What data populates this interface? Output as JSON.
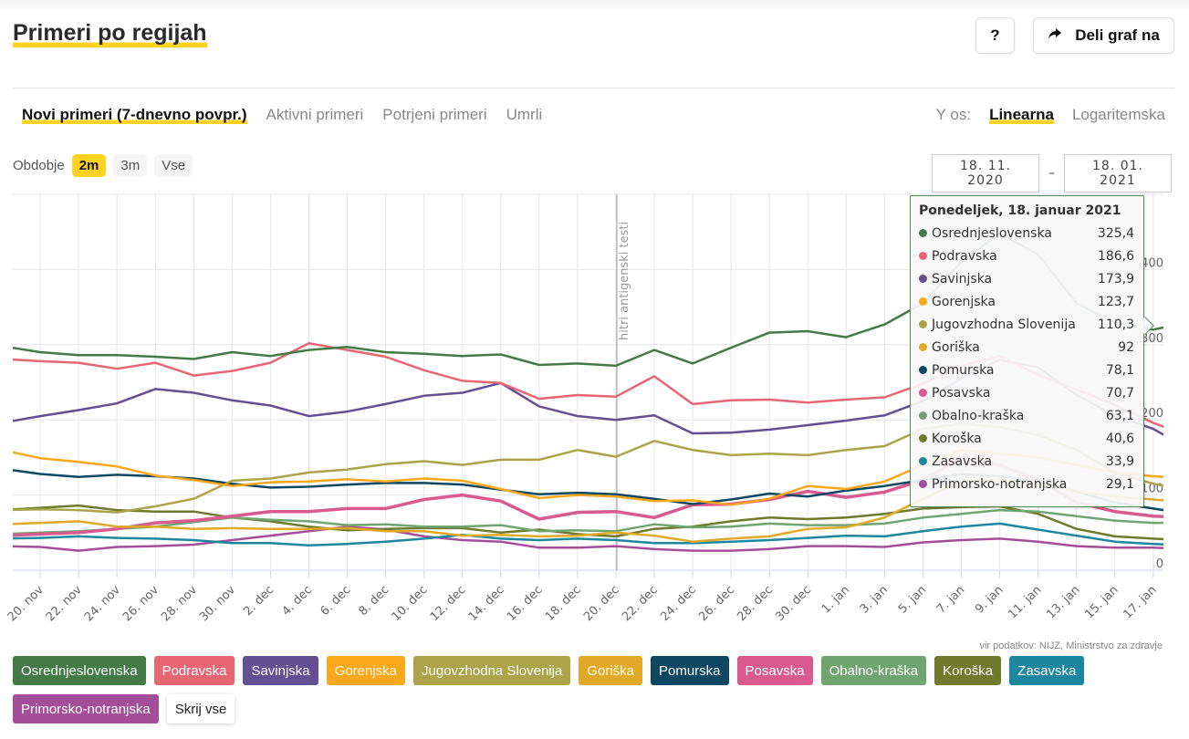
{
  "header": {
    "title": "Primeri po regijah",
    "help_label": "?",
    "share_label": "Deli graf na"
  },
  "tabs": [
    {
      "label": "Novi primeri (7-dnevno povpr.)",
      "active": true
    },
    {
      "label": "Aktivni primeri",
      "active": false
    },
    {
      "label": "Potrjeni primeri",
      "active": false
    },
    {
      "label": "Umrli",
      "active": false
    }
  ],
  "yaxis": {
    "label": "Y os:",
    "options": [
      {
        "label": "Linearna",
        "active": true
      },
      {
        "label": "Logaritemska",
        "active": false
      }
    ]
  },
  "period": {
    "label": "Obdobje",
    "options": [
      {
        "label": "2m",
        "active": true
      },
      {
        "label": "3m",
        "active": false
      },
      {
        "label": "Vse",
        "active": false
      }
    ]
  },
  "daterange": {
    "from": "18. 11. 2020",
    "separator": "–",
    "to": "18. 01. 2021"
  },
  "source": "vir podatkov: NIJZ, Ministrstvo za zdravje",
  "hide_all_label": "Skrij vse",
  "tooltip": {
    "title": "Ponedeljek, 18. januar 2021",
    "rows": [
      {
        "name": "Osrednjeslovenska",
        "value": "325,4",
        "color": "#437a46"
      },
      {
        "name": "Podravska",
        "value": "186,6",
        "color": "#e86673"
      },
      {
        "name": "Savinjska",
        "value": "173,9",
        "color": "#654f93"
      },
      {
        "name": "Gorenjska",
        "value": "123,7",
        "color": "#f9a71b"
      },
      {
        "name": "Jugovzhodna Slovenija",
        "value": "110,3",
        "color": "#ada349"
      },
      {
        "name": "Goriška",
        "value": "92",
        "color": "#e0a927"
      },
      {
        "name": "Pomurska",
        "value": "78,1",
        "color": "#0d4761"
      },
      {
        "name": "Posavska",
        "value": "70,7",
        "color": "#d85a8e"
      },
      {
        "name": "Obalno-kraška",
        "value": "63,1",
        "color": "#70a572"
      },
      {
        "name": "Koroška",
        "value": "40,6",
        "color": "#6f7a2d"
      },
      {
        "name": "Zasavska",
        "value": "33,9",
        "color": "#1d87a0"
      },
      {
        "name": "Primorsko-notranjska",
        "value": "29,1",
        "color": "#a44e9a"
      }
    ]
  },
  "chart_data": {
    "type": "line",
    "title": "Primeri po regijah — Novi primeri (7-dnevno povpr.)",
    "xlabel": "",
    "ylabel": "",
    "ylim": [
      0,
      500
    ],
    "yticks": [
      0,
      100,
      200,
      300,
      400
    ],
    "yaxis_side": "right",
    "grid": true,
    "annotation": {
      "label": "hitri antigenski testi",
      "x": "20. dec"
    },
    "x_dates": [
      "18. nov",
      "20. nov",
      "22. nov",
      "24. nov",
      "26. nov",
      "28. nov",
      "30. nov",
      "2. dec",
      "4. dec",
      "6. dec",
      "8. dec",
      "10. dec",
      "12. dec",
      "14. dec",
      "16. dec",
      "18. dec",
      "20. dec",
      "22. dec",
      "24. dec",
      "26. dec",
      "28. dec",
      "30. dec",
      "1. jan",
      "3. jan",
      "5. jan",
      "7. jan",
      "9. jan",
      "11. jan",
      "13. jan",
      "15. jan",
      "17. jan",
      "18. jan"
    ],
    "x_ticks": [
      "20. nov",
      "22. nov",
      "24. nov",
      "26. nov",
      "28. nov",
      "30. nov",
      "2. dec",
      "4. dec",
      "6. dec",
      "8. dec",
      "10. dec",
      "12. dec",
      "14. dec",
      "16. dec",
      "18. dec",
      "20. dec",
      "22. dec",
      "24. dec",
      "26. dec",
      "28. dec",
      "30. dec",
      "1. jan",
      "3. jan",
      "5. jan",
      "7. jan",
      "9. jan",
      "11. jan",
      "13. jan",
      "15. jan",
      "17. jan"
    ],
    "series": [
      {
        "name": "Osrednjeslovenska",
        "color": "#437a46",
        "values": [
          298,
          290,
          286,
          286,
          284,
          281,
          290,
          285,
          293,
          297,
          290,
          288,
          285,
          287,
          273,
          275,
          272,
          293,
          275,
          296,
          316,
          318,
          310,
          327,
          355,
          410,
          448,
          420,
          355,
          330,
          320,
          325.4
        ]
      },
      {
        "name": "Podravska",
        "color": "#e86673",
        "values": [
          281,
          278,
          276,
          268,
          276,
          259,
          265,
          276,
          302,
          293,
          284,
          266,
          252,
          249,
          228,
          233,
          231,
          258,
          221,
          226,
          227,
          223,
          227,
          230,
          248,
          272,
          285,
          260,
          240,
          220,
          196,
          186.6
        ]
      },
      {
        "name": "Savinjska",
        "color": "#654f93",
        "values": [
          196,
          205,
          213,
          222,
          241,
          236,
          226,
          219,
          205,
          211,
          221,
          232,
          236,
          249,
          218,
          205,
          200,
          206,
          182,
          183,
          187,
          193,
          199,
          206,
          225,
          255,
          280,
          270,
          233,
          206,
          188,
          173.9
        ]
      },
      {
        "name": "Gorenjska",
        "color": "#f9a71b",
        "values": [
          160,
          149,
          144,
          138,
          126,
          120,
          112,
          117,
          118,
          121,
          118,
          122,
          119,
          108,
          96,
          100,
          98,
          92,
          93,
          87,
          95,
          112,
          108,
          118,
          140,
          160,
          155,
          150,
          140,
          130,
          125,
          123.7
        ]
      },
      {
        "name": "Jugovzhodna Slovenija",
        "color": "#ada349",
        "values": [
          80,
          81,
          80,
          77,
          85,
          95,
          119,
          122,
          130,
          134,
          141,
          145,
          140,
          147,
          147,
          160,
          151,
          172,
          160,
          153,
          155,
          153,
          160,
          165,
          188,
          195,
          190,
          180,
          160,
          130,
          115,
          110.3
        ]
      },
      {
        "name": "Goriška",
        "color": "#e0a927",
        "values": [
          61,
          63,
          65,
          58,
          58,
          55,
          56,
          55,
          55,
          56,
          52,
          52,
          46,
          47,
          45,
          46,
          50,
          46,
          38,
          42,
          45,
          55,
          57,
          70,
          95,
          118,
          120,
          115,
          105,
          98,
          94,
          92
        ]
      },
      {
        "name": "Pomurska",
        "color": "#0d4761",
        "values": [
          135,
          128,
          124,
          127,
          125,
          122,
          115,
          110,
          111,
          114,
          116,
          116,
          114,
          107,
          101,
          103,
          101,
          95,
          88,
          94,
          102,
          98,
          106,
          112,
          120,
          128,
          125,
          118,
          105,
          90,
          82,
          78.1
        ]
      },
      {
        "name": "Posavska",
        "color": "#d85a8e",
        "values": [
          46,
          48,
          50,
          55,
          63,
          66,
          72,
          78,
          78,
          82,
          82,
          94,
          100,
          92,
          68,
          77,
          78,
          70,
          87,
          88,
          94,
          105,
          97,
          104,
          120,
          150,
          140,
          120,
          90,
          78,
          72,
          70.7
        ]
      },
      {
        "name": "Obalno-kraška",
        "color": "#70a572",
        "values": [
          48,
          50,
          52,
          55,
          58,
          64,
          70,
          67,
          65,
          60,
          61,
          58,
          58,
          60,
          52,
          53,
          52,
          61,
          57,
          58,
          62,
          60,
          60,
          62,
          70,
          75,
          80,
          78,
          72,
          66,
          63,
          63.1
        ]
      },
      {
        "name": "Koroška",
        "color": "#6f7a2d",
        "values": [
          80,
          83,
          86,
          80,
          78,
          78,
          70,
          65,
          58,
          53,
          55,
          56,
          56,
          50,
          54,
          48,
          45,
          55,
          58,
          65,
          70,
          68,
          70,
          75,
          82,
          84,
          85,
          75,
          55,
          45,
          42,
          40.6
        ]
      },
      {
        "name": "Zasavska",
        "color": "#1d87a0",
        "values": [
          42,
          43,
          45,
          43,
          42,
          40,
          36,
          36,
          33,
          35,
          38,
          42,
          47,
          42,
          40,
          42,
          40,
          36,
          36,
          38,
          40,
          43,
          46,
          45,
          52,
          58,
          62,
          54,
          46,
          38,
          35,
          33.9
        ]
      },
      {
        "name": "Primorsko-notranjska",
        "color": "#a44e9a",
        "values": [
          32,
          31,
          26,
          31,
          32,
          34,
          40,
          46,
          52,
          58,
          54,
          45,
          40,
          38,
          30,
          30,
          32,
          28,
          26,
          26,
          28,
          32,
          32,
          31,
          37,
          40,
          42,
          38,
          32,
          30,
          30,
          29.1
        ]
      }
    ]
  },
  "legend": [
    {
      "name": "Osrednjeslovenska",
      "bg": "#437a46",
      "fg": "#ffffff"
    },
    {
      "name": "Podravska",
      "bg": "#e86673",
      "fg": "#ffffff"
    },
    {
      "name": "Savinjska",
      "bg": "#654f93",
      "fg": "#ffffff"
    },
    {
      "name": "Gorenjska",
      "bg": "#f9a71b",
      "fg": "#fff8e0"
    },
    {
      "name": "Jugovzhodna Slovenija",
      "bg": "#ada349",
      "fg": "#ffffff"
    },
    {
      "name": "Goriška",
      "bg": "#e0a927",
      "fg": "#fff8e0"
    },
    {
      "name": "Pomurska",
      "bg": "#0d4761",
      "fg": "#ffffff"
    },
    {
      "name": "Posavska",
      "bg": "#d85a8e",
      "fg": "#ffffff"
    },
    {
      "name": "Obalno-kraška",
      "bg": "#70a572",
      "fg": "#ffffff"
    },
    {
      "name": "Koroška",
      "bg": "#6f7a2d",
      "fg": "#ffffff"
    },
    {
      "name": "Zasavska",
      "bg": "#1d87a0",
      "fg": "#ffffff"
    },
    {
      "name": "Primorsko-notranjska",
      "bg": "#a44e9a",
      "fg": "#ffffff"
    }
  ]
}
